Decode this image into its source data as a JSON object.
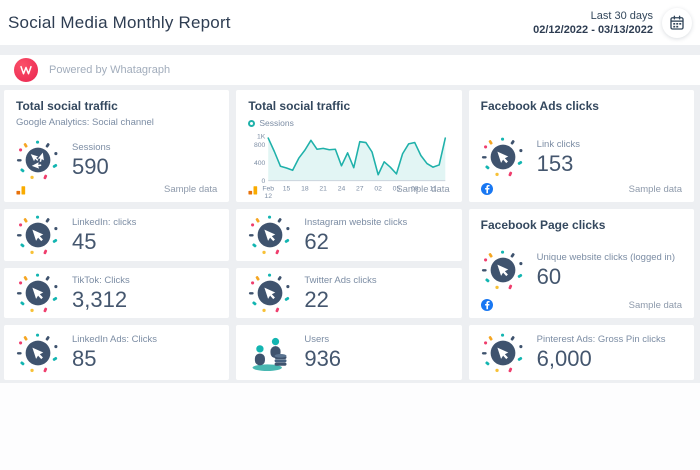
{
  "header": {
    "title": "Social Media Monthly Report",
    "range_label": "Last 30 days",
    "date_range": "02/12/2022 - 03/13/2022"
  },
  "powered_bar": {
    "text": "Powered by Whatagraph"
  },
  "labels": {
    "sample_data": "Sample data"
  },
  "cards": {
    "total_social_traffic_kpi": {
      "title": "Total social traffic",
      "subtitle": "Google Analytics: Social channel",
      "metric_label": "Sessions",
      "metric_value": "590"
    },
    "total_social_traffic_chart": {
      "title": "Total social traffic",
      "legend": "Sessions"
    },
    "facebook_ads_clicks": {
      "title": "Facebook Ads clicks",
      "metric_label": "Link clicks",
      "metric_value": "153"
    },
    "linkedin_clicks": {
      "metric_label": "LinkedIn: clicks",
      "metric_value": "45"
    },
    "instagram_website_clicks": {
      "metric_label": "Instagram website clicks",
      "metric_value": "62"
    },
    "facebook_page_clicks": {
      "title": "Facebook Page clicks",
      "metric_label": "Unique website clicks (logged in)",
      "metric_value": "60"
    },
    "tiktok_clicks": {
      "metric_label": "TikTok: Clicks",
      "metric_value": "3,312"
    },
    "twitter_ads_clicks": {
      "metric_label": "Twitter Ads clicks",
      "metric_value": "22"
    },
    "linkedin_ads_clicks": {
      "metric_label": "LinkedIn Ads: Clicks",
      "metric_value": "85"
    },
    "users": {
      "metric_label": "Users",
      "metric_value": "936"
    },
    "pinterest_ads_clicks": {
      "metric_label": "Pinterest Ads: Gross Pin clicks",
      "metric_value": "6,000"
    }
  },
  "chart_data": {
    "type": "area",
    "title": "Total social traffic",
    "legend": [
      "Sessions"
    ],
    "legend_position": "top-left",
    "grid": false,
    "ylim": [
      0,
      1000
    ],
    "x_range": "Feb 12 2022 - Mar 13 2022 (daily)",
    "series": [
      {
        "name": "Sessions",
        "color": "#1fb1aa",
        "values": [
          950,
          650,
          320,
          280,
          230,
          500,
          680,
          900,
          700,
          720,
          690,
          700,
          330,
          620,
          290,
          870,
          850,
          640,
          130,
          420,
          300,
          150,
          600,
          820,
          850,
          560,
          380,
          300,
          350,
          950
        ]
      }
    ],
    "x_ticks": [
      {
        "day": 0,
        "label": "Feb 12"
      },
      {
        "day": 3,
        "label": "15"
      },
      {
        "day": 6,
        "label": "18"
      },
      {
        "day": 9,
        "label": "21"
      },
      {
        "day": 12,
        "label": "24"
      },
      {
        "day": 15,
        "label": "27"
      },
      {
        "day": 18,
        "label": "02"
      },
      {
        "day": 21,
        "label": "05"
      },
      {
        "day": 24,
        "label": "08"
      },
      {
        "day": 27,
        "label": "11"
      }
    ],
    "y_ticks": [
      {
        "value": 0,
        "label": "0"
      },
      {
        "value": 400,
        "label": "400"
      },
      {
        "value": 800,
        "label": "800"
      },
      {
        "value": 1000,
        "label": "1K"
      }
    ]
  },
  "colors": {
    "accent_teal": "#1fb1aa",
    "navy": "#3f536e",
    "background_gray": "#edeff2",
    "whatagraph_red": "#e92551",
    "facebook_blue": "#1877f2",
    "ga_orange": "#f9ab00",
    "confetti": [
      "#f5a623",
      "#13b5b1",
      "#ef3e6d",
      "#3f536e",
      "#f7c137"
    ]
  }
}
